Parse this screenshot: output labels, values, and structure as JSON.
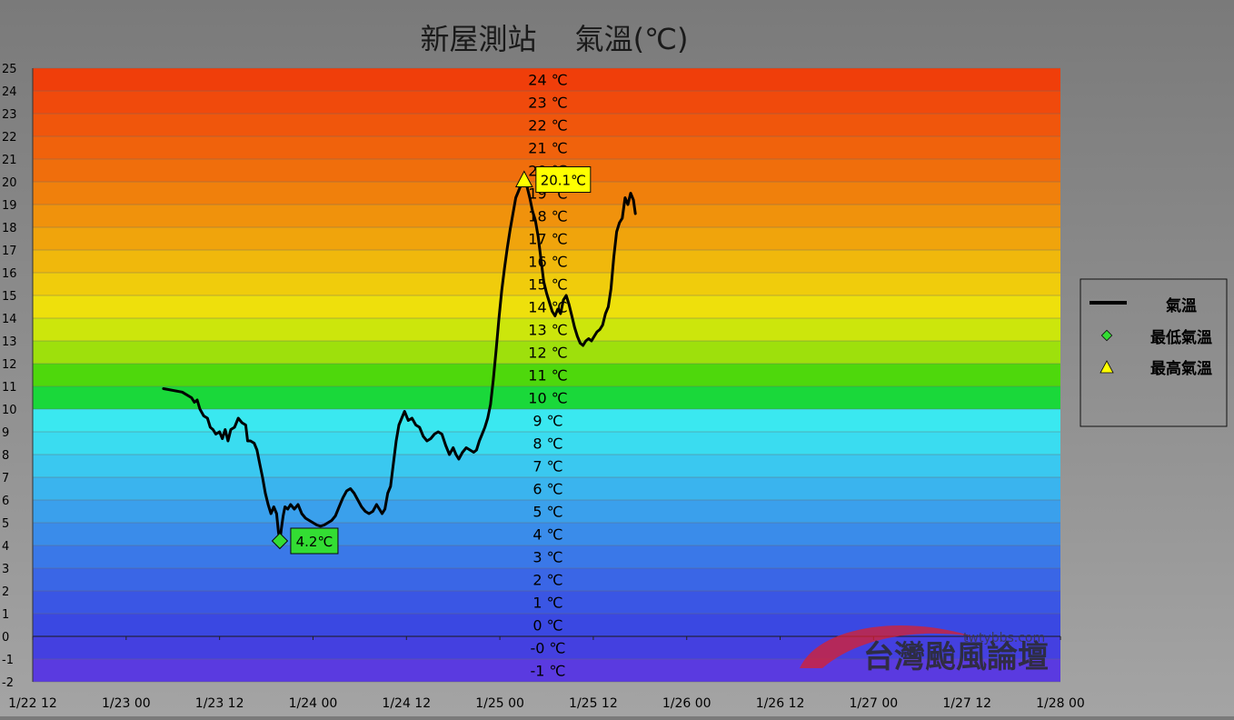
{
  "chart_data": {
    "type": "line",
    "title": "新屋測站　 氣溫(℃)",
    "ylim": [
      -2,
      25
    ],
    "y_ticks": [
      -2,
      -1,
      0,
      1,
      2,
      3,
      4,
      5,
      6,
      7,
      8,
      9,
      10,
      11,
      12,
      13,
      14,
      15,
      16,
      17,
      18,
      19,
      20,
      21,
      22,
      23,
      24,
      25
    ],
    "band_labels": [
      "24 ℃",
      "23 ℃",
      "22 ℃",
      "21 ℃",
      "20 ℃",
      "19 ℃",
      "18 ℃",
      "17 ℃",
      "16 ℃",
      "15 ℃",
      "14 ℃",
      "13 ℃",
      "12 ℃",
      "11 ℃",
      "10 ℃",
      "9 ℃",
      "8 ℃",
      "7 ℃",
      "6 ℃",
      "5 ℃",
      "4 ℃",
      "3 ℃",
      "2 ℃",
      "1 ℃",
      "0 ℃",
      "-0 ℃",
      "-1 ℃"
    ],
    "x_ticks": [
      "1/22 12",
      "1/23 00",
      "1/23 12",
      "1/24 00",
      "1/24 12",
      "1/25 00",
      "1/25 12",
      "1/26 00",
      "1/26 12",
      "1/27 00",
      "1/27 12",
      "1/28 00"
    ],
    "series": [
      {
        "name": "氣溫",
        "color": "#000000",
        "points": [
          [
            1.4,
            10.9
          ],
          [
            1.6,
            10.75
          ],
          [
            1.7,
            10.5
          ],
          [
            1.73,
            10.3
          ],
          [
            1.76,
            10.4
          ],
          [
            1.79,
            10.0
          ],
          [
            1.83,
            9.7
          ],
          [
            1.87,
            9.6
          ],
          [
            1.9,
            9.2
          ],
          [
            1.93,
            9.1
          ],
          [
            1.96,
            8.9
          ],
          [
            2.0,
            9.0
          ],
          [
            2.03,
            8.7
          ],
          [
            2.06,
            9.1
          ],
          [
            2.09,
            8.6
          ],
          [
            2.12,
            9.1
          ],
          [
            2.16,
            9.2
          ],
          [
            2.2,
            9.6
          ],
          [
            2.24,
            9.4
          ],
          [
            2.28,
            9.3
          ],
          [
            2.3,
            8.6
          ],
          [
            2.33,
            8.6
          ],
          [
            2.37,
            8.5
          ],
          [
            2.4,
            8.2
          ],
          [
            2.43,
            7.6
          ],
          [
            2.46,
            7.0
          ],
          [
            2.49,
            6.3
          ],
          [
            2.52,
            5.8
          ],
          [
            2.55,
            5.4
          ],
          [
            2.58,
            5.7
          ],
          [
            2.61,
            5.4
          ],
          [
            2.63,
            4.6
          ],
          [
            2.645,
            4.2
          ],
          [
            2.66,
            4.7
          ],
          [
            2.68,
            5.3
          ],
          [
            2.7,
            5.7
          ],
          [
            2.73,
            5.6
          ],
          [
            2.76,
            5.8
          ],
          [
            2.8,
            5.6
          ],
          [
            2.84,
            5.8
          ],
          [
            2.88,
            5.4
          ],
          [
            2.92,
            5.2
          ],
          [
            2.96,
            5.1
          ],
          [
            3.0,
            5.0
          ],
          [
            3.04,
            4.9
          ],
          [
            3.08,
            4.85
          ],
          [
            3.12,
            4.9
          ],
          [
            3.16,
            5.0
          ],
          [
            3.2,
            5.1
          ],
          [
            3.24,
            5.3
          ],
          [
            3.28,
            5.7
          ],
          [
            3.32,
            6.1
          ],
          [
            3.36,
            6.4
          ],
          [
            3.4,
            6.5
          ],
          [
            3.44,
            6.3
          ],
          [
            3.48,
            6.0
          ],
          [
            3.52,
            5.7
          ],
          [
            3.56,
            5.5
          ],
          [
            3.6,
            5.4
          ],
          [
            3.64,
            5.5
          ],
          [
            3.68,
            5.8
          ],
          [
            3.71,
            5.6
          ],
          [
            3.74,
            5.4
          ],
          [
            3.77,
            5.6
          ],
          [
            3.8,
            6.3
          ],
          [
            3.83,
            6.6
          ],
          [
            3.86,
            7.6
          ],
          [
            3.89,
            8.6
          ],
          [
            3.92,
            9.3
          ],
          [
            3.95,
            9.6
          ],
          [
            3.98,
            9.9
          ],
          [
            4.02,
            9.5
          ],
          [
            4.06,
            9.6
          ],
          [
            4.1,
            9.3
          ],
          [
            4.14,
            9.2
          ],
          [
            4.18,
            8.8
          ],
          [
            4.22,
            8.6
          ],
          [
            4.26,
            8.7
          ],
          [
            4.3,
            8.9
          ],
          [
            4.34,
            9.0
          ],
          [
            4.38,
            8.9
          ],
          [
            4.42,
            8.4
          ],
          [
            4.46,
            8.0
          ],
          [
            4.5,
            8.3
          ],
          [
            4.53,
            8.0
          ],
          [
            4.56,
            7.8
          ],
          [
            4.6,
            8.1
          ],
          [
            4.64,
            8.3
          ],
          [
            4.68,
            8.2
          ],
          [
            4.72,
            8.1
          ],
          [
            4.75,
            8.2
          ],
          [
            4.78,
            8.6
          ],
          [
            4.81,
            8.9
          ],
          [
            4.84,
            9.2
          ],
          [
            4.87,
            9.6
          ],
          [
            4.9,
            10.2
          ],
          [
            4.93,
            11.3
          ],
          [
            4.96,
            12.6
          ],
          [
            4.99,
            14.0
          ],
          [
            5.02,
            15.2
          ],
          [
            5.05,
            16.2
          ],
          [
            5.08,
            17.1
          ],
          [
            5.11,
            17.9
          ],
          [
            5.14,
            18.6
          ],
          [
            5.17,
            19.3
          ],
          [
            5.2,
            19.6
          ],
          [
            5.23,
            19.9
          ],
          [
            5.26,
            20.1
          ],
          [
            5.29,
            19.8
          ],
          [
            5.32,
            19.3
          ],
          [
            5.35,
            18.7
          ],
          [
            5.38,
            18.3
          ],
          [
            5.41,
            17.6
          ],
          [
            5.44,
            16.6
          ],
          [
            5.47,
            15.6
          ],
          [
            5.5,
            15.1
          ],
          [
            5.53,
            14.7
          ],
          [
            5.56,
            14.3
          ],
          [
            5.59,
            14.1
          ],
          [
            5.62,
            14.4
          ],
          [
            5.65,
            14.2
          ],
          [
            5.68,
            14.8
          ],
          [
            5.71,
            15.0
          ],
          [
            5.74,
            14.6
          ],
          [
            5.77,
            14.1
          ],
          [
            5.8,
            13.6
          ],
          [
            5.83,
            13.2
          ],
          [
            5.86,
            12.9
          ],
          [
            5.89,
            12.8
          ],
          [
            5.92,
            13.0
          ],
          [
            5.95,
            13.1
          ],
          [
            5.98,
            13.0
          ],
          [
            6.01,
            13.2
          ],
          [
            6.04,
            13.4
          ],
          [
            6.07,
            13.5
          ],
          [
            6.1,
            13.7
          ],
          [
            6.13,
            14.2
          ],
          [
            6.16,
            14.5
          ],
          [
            6.19,
            15.3
          ],
          [
            6.22,
            16.7
          ],
          [
            6.25,
            17.8
          ],
          [
            6.28,
            18.2
          ],
          [
            6.31,
            18.4
          ],
          [
            6.34,
            19.3
          ],
          [
            6.37,
            19.0
          ],
          [
            6.4,
            19.5
          ],
          [
            6.43,
            19.2
          ],
          [
            6.45,
            18.6
          ]
        ]
      }
    ],
    "min_marker": {
      "name": "最低氣溫",
      "x": 2.645,
      "y": 4.2,
      "label": "4.2℃",
      "color": "#33dd33"
    },
    "max_marker": {
      "name": "最高氣溫",
      "x": 5.26,
      "y": 20.1,
      "label": "20.1℃",
      "color": "#ffff00"
    },
    "bands": [
      {
        "from": 24,
        "to": 25,
        "color": "#f03e0a"
      },
      {
        "from": 23,
        "to": 24,
        "color": "#f04a0c"
      },
      {
        "from": 22,
        "to": 23,
        "color": "#f0560c"
      },
      {
        "from": 21,
        "to": 22,
        "color": "#f0620c"
      },
      {
        "from": 20,
        "to": 21,
        "color": "#f06e0c"
      },
      {
        "from": 19,
        "to": 20,
        "color": "#f0800c"
      },
      {
        "from": 18,
        "to": 19,
        "color": "#f0920c"
      },
      {
        "from": 17,
        "to": 18,
        "color": "#f0a40c"
      },
      {
        "from": 16,
        "to": 17,
        "color": "#f0b80c"
      },
      {
        "from": 15,
        "to": 16,
        "color": "#f0cc0c"
      },
      {
        "from": 14,
        "to": 15,
        "color": "#eee00c"
      },
      {
        "from": 13,
        "to": 14,
        "color": "#cce60c"
      },
      {
        "from": 12,
        "to": 13,
        "color": "#9ee00c"
      },
      {
        "from": 11,
        "to": 12,
        "color": "#4ed80c"
      },
      {
        "from": 10,
        "to": 11,
        "color": "#1ad83a"
      },
      {
        "from": 9,
        "to": 10,
        "color": "#3ae8f0"
      },
      {
        "from": 8,
        "to": 9,
        "color": "#3adcf0"
      },
      {
        "from": 7,
        "to": 8,
        "color": "#3ac8f0"
      },
      {
        "from": 6,
        "to": 7,
        "color": "#3ab4ee"
      },
      {
        "from": 5,
        "to": 6,
        "color": "#3aa0ec"
      },
      {
        "from": 4,
        "to": 5,
        "color": "#3a8cea"
      },
      {
        "from": 3,
        "to": 4,
        "color": "#3a78e8"
      },
      {
        "from": 2,
        "to": 3,
        "color": "#3a66e6"
      },
      {
        "from": 1,
        "to": 2,
        "color": "#3a56e4"
      },
      {
        "from": 0,
        "to": 1,
        "color": "#3a48e2"
      },
      {
        "from": -1,
        "to": 0,
        "color": "#4440e0"
      },
      {
        "from": -2,
        "to": -1,
        "color": "#5a3ae0"
      }
    ]
  },
  "legend": {
    "items": [
      {
        "label": "氣溫",
        "symbol": "line-icon"
      },
      {
        "label": "最低氣溫",
        "symbol": "diamond-icon"
      },
      {
        "label": "最高氣溫",
        "symbol": "triangle-icon"
      }
    ]
  },
  "watermark": {
    "text": "台灣颱風論壇",
    "url": "twtybbs.com"
  }
}
